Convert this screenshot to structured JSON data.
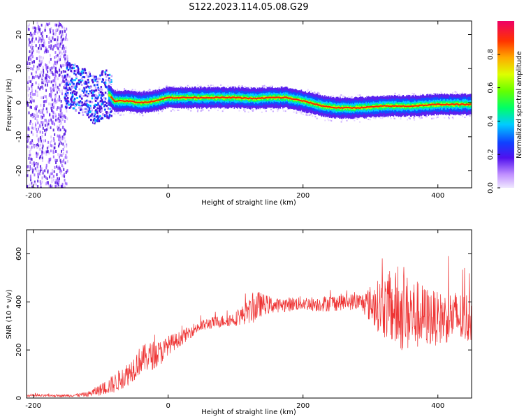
{
  "title": "S122.2023.114.05.08.G29",
  "chart_data": [
    {
      "type": "heatmap",
      "xlabel": "Height of straight line (km)",
      "ylabel": "Frequency (Hz)",
      "xlim": [
        -210,
        450
      ],
      "ylim": [
        -25,
        24
      ],
      "xticks": [
        -200,
        0,
        200,
        400
      ],
      "yticks": [
        -20,
        -10,
        0,
        10,
        20
      ],
      "grid": false,
      "colorbar": {
        "label": "Normalized spectral amplitude",
        "ticks": [
          0.0,
          0.2,
          0.4,
          0.6,
          0.8
        ],
        "range": [
          0,
          1
        ]
      },
      "ridge": {
        "x": [
          -210,
          -160,
          -130,
          -110,
          -95,
          -85,
          -80,
          -60,
          -40,
          -20,
          0,
          50,
          100,
          130,
          150,
          175,
          200,
          230,
          250,
          280,
          320,
          360,
          400,
          430,
          450
        ],
        "y": [
          0,
          6,
          4,
          1,
          3,
          2,
          0.5,
          0.5,
          0,
          0.5,
          1.5,
          1.5,
          1.5,
          1.2,
          1.5,
          1.5,
          0.5,
          -1,
          -1.5,
          -1.5,
          -1,
          -1,
          -0.5,
          -0.5,
          -0.5
        ]
      }
    },
    {
      "type": "line",
      "xlabel": "Height of straight line (km)",
      "ylabel": "SNR (10 * v/v)",
      "xlim": [
        -210,
        450
      ],
      "ylim": [
        0,
        700
      ],
      "xticks": [
        -200,
        0,
        200,
        400
      ],
      "yticks": [
        0,
        200,
        400,
        600
      ],
      "grid": false,
      "color": "#ee3333",
      "series": [
        {
          "x": [
            -210,
            -180,
            -150,
            -120,
            -100,
            -80,
            -60,
            -40,
            -20,
            -10,
            0,
            20,
            40,
            60,
            80,
            100,
            120,
            130,
            140,
            160,
            180,
            200,
            220,
            240,
            260,
            280,
            290,
            300,
            320,
            340,
            360,
            380,
            400,
            420,
            440,
            450
          ],
          "y": [
            10,
            10,
            10,
            15,
            35,
            60,
            100,
            160,
            180,
            190,
            220,
            250,
            290,
            310,
            320,
            330,
            360,
            380,
            390,
            385,
            390,
            395,
            390,
            395,
            400,
            400,
            395,
            390,
            380,
            360,
            350,
            340,
            330,
            340,
            330,
            340
          ],
          "spread": [
            5,
            5,
            5,
            10,
            25,
            40,
            50,
            60,
            60,
            50,
            40,
            30,
            25,
            25,
            25,
            30,
            50,
            70,
            45,
            30,
            30,
            30,
            30,
            35,
            35,
            35,
            45,
            80,
            130,
            170,
            160,
            130,
            110,
            110,
            110,
            110
          ]
        }
      ]
    }
  ]
}
